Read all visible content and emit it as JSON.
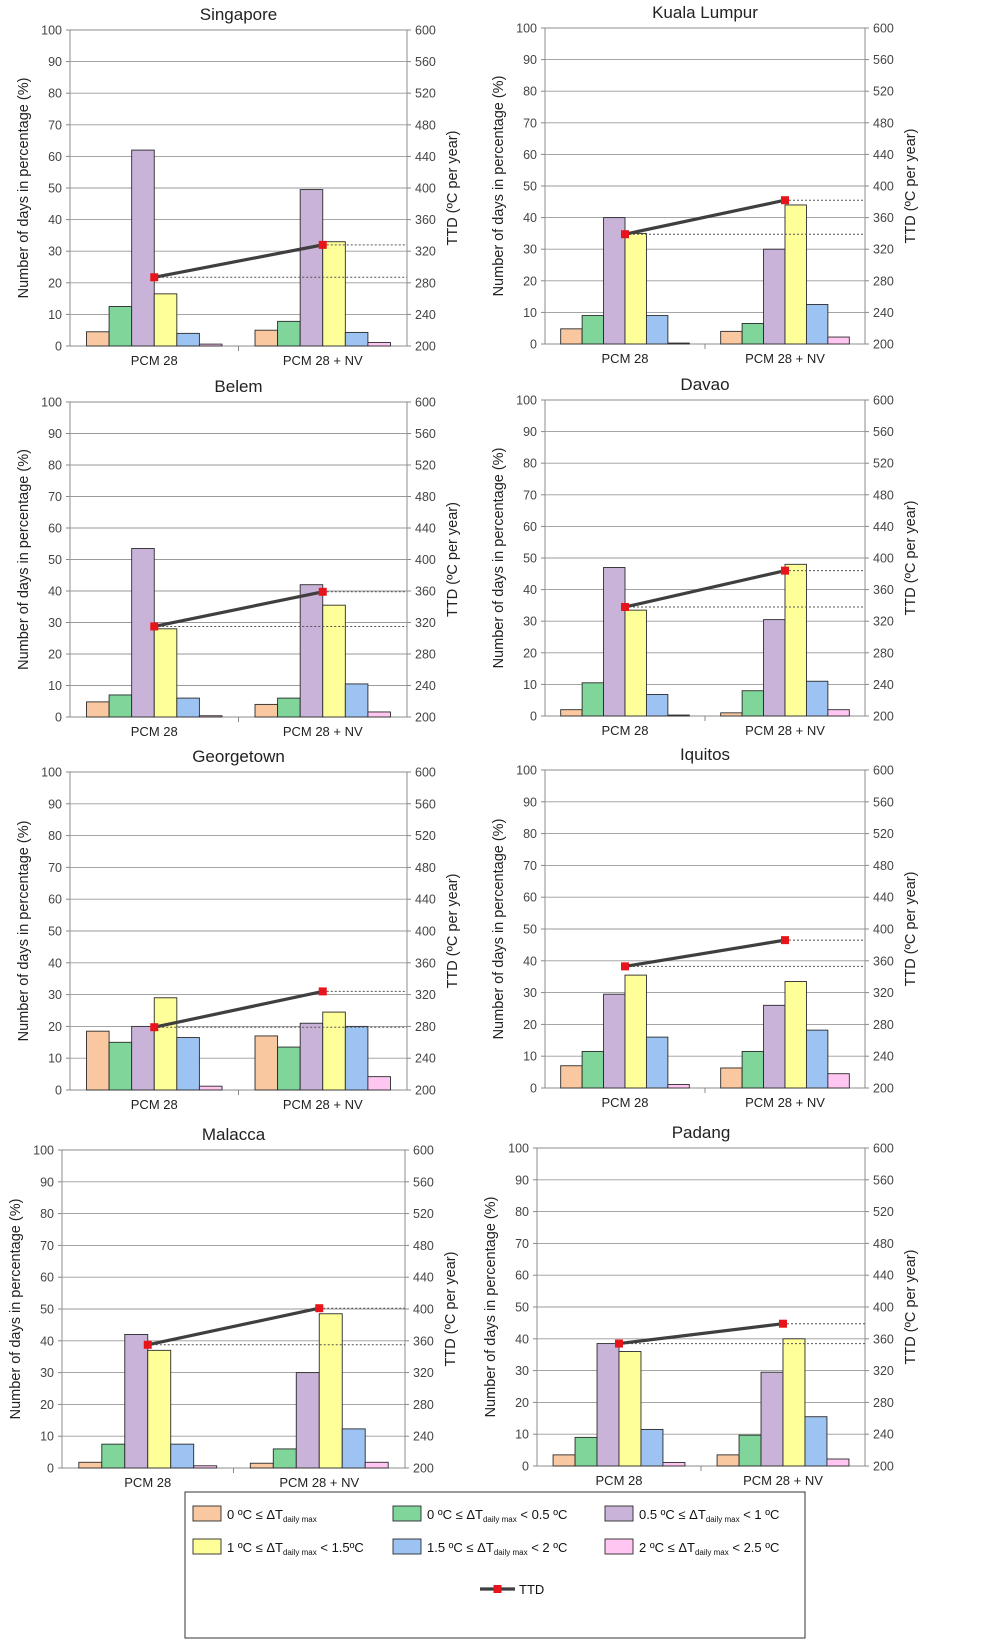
{
  "chart_data": [
    {
      "type": "bar",
      "title": "Singapore",
      "categories": [
        "PCM 28",
        "PCM 28 + NV"
      ],
      "ylabel": "Number of days in percentage (%)",
      "y2label": "TTD (ºC per year)",
      "ylim": [
        0,
        100
      ],
      "y2lim": [
        200,
        600
      ],
      "yticks": [
        "0",
        "10",
        "20",
        "30",
        "40",
        "50",
        "60",
        "70",
        "80",
        "90",
        "100"
      ],
      "y2ticks": [
        "200",
        "240",
        "280",
        "320",
        "360",
        "400",
        "440",
        "480",
        "520",
        "560",
        "600"
      ],
      "series": [
        {
          "name": "0 ºC ≤ ΔT daily max",
          "values": [
            4.5,
            5
          ]
        },
        {
          "name": "0 ºC ≤ ΔT daily max < 0.5 ºC",
          "values": [
            12.5,
            7.8
          ]
        },
        {
          "name": "0.5 ºC ≤ ΔT daily max < 1 ºC",
          "values": [
            62,
            49.5
          ]
        },
        {
          "name": "1 ºC ≤ ΔT daily max < 1.5ºC",
          "values": [
            16.5,
            33
          ]
        },
        {
          "name": "1.5 ºC ≤ ΔT daily max < 2 ºC",
          "values": [
            4,
            4.3
          ]
        },
        {
          "name": "2 ºC ≤ ΔT daily max < 2.5 ºC",
          "values": [
            0.6,
            1.1
          ]
        }
      ],
      "ttd": [
        287,
        328
      ]
    },
    {
      "type": "bar",
      "title": "Kuala Lumpur",
      "categories": [
        "PCM 28",
        "PCM 28 + NV"
      ],
      "ylabel": "Number of days in percentage (%)",
      "y2label": "TTD (ºC per year)",
      "ylim": [
        0,
        100
      ],
      "y2lim": [
        200,
        600
      ],
      "yticks": [
        "0",
        "10",
        "20",
        "30",
        "40",
        "50",
        "60",
        "70",
        "80",
        "90",
        "100"
      ],
      "y2ticks": [
        "200",
        "240",
        "280",
        "320",
        "360",
        "400",
        "440",
        "480",
        "520",
        "560",
        "600"
      ],
      "series": [
        {
          "name": "0 ºC ≤ ΔT daily max",
          "values": [
            4.8,
            4
          ]
        },
        {
          "name": "0 ºC ≤ ΔT daily max < 0.5 ºC",
          "values": [
            9,
            6.5
          ]
        },
        {
          "name": "0.5 ºC ≤ ΔT daily max < 1 ºC",
          "values": [
            40,
            30
          ]
        },
        {
          "name": "1 ºC ≤ ΔT daily max < 1.5ºC",
          "values": [
            35,
            44
          ]
        },
        {
          "name": "1.5 ºC ≤ ΔT daily max < 2 ºC",
          "values": [
            9,
            12.5
          ]
        },
        {
          "name": "2 ºC ≤ ΔT daily max < 2.5 ºC",
          "values": [
            0.3,
            2.2
          ]
        }
      ],
      "ttd": [
        339,
        382
      ]
    },
    {
      "type": "bar",
      "title": "Belem",
      "categories": [
        "PCM 28",
        "PCM 28 + NV"
      ],
      "ylabel": "Number of days in percentage (%)",
      "y2label": "TTD (ºC per year)",
      "ylim": [
        0,
        100
      ],
      "y2lim": [
        200,
        600
      ],
      "yticks": [
        "0",
        "10",
        "20",
        "30",
        "40",
        "50",
        "60",
        "70",
        "80",
        "90",
        "100"
      ],
      "y2ticks": [
        "200",
        "240",
        "280",
        "320",
        "360",
        "400",
        "440",
        "480",
        "520",
        "560",
        "600"
      ],
      "series": [
        {
          "name": "0 ºC ≤ ΔT daily max",
          "values": [
            4.8,
            4
          ]
        },
        {
          "name": "0 ºC ≤ ΔT daily max < 0.5 ºC",
          "values": [
            7,
            6
          ]
        },
        {
          "name": "0.5 ºC ≤ ΔT daily max < 1 ºC",
          "values": [
            53.5,
            42
          ]
        },
        {
          "name": "1 ºC ≤ ΔT daily max < 1.5ºC",
          "values": [
            28,
            35.5
          ]
        },
        {
          "name": "1.5 ºC ≤ ΔT daily max < 2 ºC",
          "values": [
            6,
            10.5
          ]
        },
        {
          "name": "2 ºC ≤ ΔT daily max < 2.5 ºC",
          "values": [
            0.4,
            1.6
          ]
        }
      ],
      "ttd": [
        315,
        359
      ]
    },
    {
      "type": "bar",
      "title": "Davao",
      "categories": [
        "PCM 28",
        "PCM 28 + NV"
      ],
      "ylabel": "Number of days in percentage (%)",
      "y2label": "TTD (ºC per year)",
      "ylim": [
        0,
        100
      ],
      "y2lim": [
        200,
        600
      ],
      "yticks": [
        "0",
        "10",
        "20",
        "30",
        "40",
        "50",
        "60",
        "70",
        "80",
        "90",
        "100"
      ],
      "y2ticks": [
        "200",
        "240",
        "280",
        "320",
        "360",
        "400",
        "440",
        "480",
        "520",
        "560",
        "600"
      ],
      "series": [
        {
          "name": "0 ºC ≤ ΔT daily max",
          "values": [
            2,
            1
          ]
        },
        {
          "name": "0 ºC ≤ ΔT daily max < 0.5 ºC",
          "values": [
            10.5,
            8
          ]
        },
        {
          "name": "0.5 ºC ≤ ΔT daily max < 1 ºC",
          "values": [
            47,
            30.5
          ]
        },
        {
          "name": "1 ºC ≤ ΔT daily max < 1.5ºC",
          "values": [
            33.5,
            48
          ]
        },
        {
          "name": "1.5 ºC ≤ ΔT daily max < 2 ºC",
          "values": [
            6.8,
            11
          ]
        },
        {
          "name": "2 ºC ≤ ΔT daily max < 2.5 ºC",
          "values": [
            0.3,
            2
          ]
        }
      ],
      "ttd": [
        338,
        384
      ]
    },
    {
      "type": "bar",
      "title": "Georgetown",
      "categories": [
        "PCM 28",
        "PCM 28 + NV"
      ],
      "ylabel": "Number of days in percentage (%)",
      "y2label": "TTD (ºC per year)",
      "ylim": [
        0,
        100
      ],
      "y2lim": [
        200,
        600
      ],
      "yticks": [
        "0",
        "10",
        "20",
        "30",
        "40",
        "50",
        "60",
        "70",
        "80",
        "90",
        "100"
      ],
      "y2ticks": [
        "200",
        "240",
        "280",
        "320",
        "360",
        "400",
        "440",
        "480",
        "520",
        "560",
        "600"
      ],
      "series": [
        {
          "name": "0 ºC ≤ ΔT daily max",
          "values": [
            18.5,
            17
          ]
        },
        {
          "name": "0 ºC ≤ ΔT daily max < 0.5 ºC",
          "values": [
            15,
            13.5
          ]
        },
        {
          "name": "0.5 ºC ≤ ΔT daily max < 1 ºC",
          "values": [
            20,
            21
          ]
        },
        {
          "name": "1 ºC ≤ ΔT daily max < 1.5ºC",
          "values": [
            29,
            24.5
          ]
        },
        {
          "name": "1.5 ºC ≤ ΔT daily max < 2 ºC",
          "values": [
            16.5,
            20
          ]
        },
        {
          "name": "2 ºC ≤ ΔT daily max < 2.5 ºC",
          "values": [
            1.2,
            4.2
          ]
        }
      ],
      "ttd": [
        279,
        324
      ]
    },
    {
      "type": "bar",
      "title": "Iquitos",
      "categories": [
        "PCM 28",
        "PCM 28 + NV"
      ],
      "ylabel": "Number of days in percentage (%)",
      "y2label": "TTD (ºC per year)",
      "ylim": [
        0,
        100
      ],
      "y2lim": [
        200,
        600
      ],
      "yticks": [
        "0",
        "10",
        "20",
        "30",
        "40",
        "50",
        "60",
        "70",
        "80",
        "90",
        "100"
      ],
      "y2ticks": [
        "200",
        "240",
        "280",
        "320",
        "360",
        "400",
        "440",
        "480",
        "520",
        "560",
        "600"
      ],
      "series": [
        {
          "name": "0 ºC ≤ ΔT daily max",
          "values": [
            7,
            6.3
          ]
        },
        {
          "name": "0 ºC ≤ ΔT daily max < 0.5 ºC",
          "values": [
            11.5,
            11.5
          ]
        },
        {
          "name": "0.5 ºC ≤ ΔT daily max < 1 ºC",
          "values": [
            29.5,
            26
          ]
        },
        {
          "name": "1 ºC ≤ ΔT daily max < 1.5ºC",
          "values": [
            35.5,
            33.5
          ]
        },
        {
          "name": "1.5 ºC ≤ ΔT daily max < 2 ºC",
          "values": [
            16,
            18.2
          ]
        },
        {
          "name": "2 ºC ≤ ΔT daily max < 2.5 ºC",
          "values": [
            1.1,
            4.5
          ]
        }
      ],
      "ttd": [
        353,
        386
      ]
    },
    {
      "type": "bar",
      "title": "Malacca",
      "categories": [
        "PCM 28",
        "PCM 28 + NV"
      ],
      "ylabel": "Number of days in percentage (%)",
      "y2label": "TTD (ºC per year)",
      "ylim": [
        0,
        100
      ],
      "y2lim": [
        200,
        600
      ],
      "yticks": [
        "0",
        "10",
        "20",
        "30",
        "40",
        "50",
        "60",
        "70",
        "80",
        "90",
        "100"
      ],
      "y2ticks": [
        "200",
        "240",
        "280",
        "320",
        "360",
        "400",
        "440",
        "480",
        "520",
        "560",
        "600"
      ],
      "series": [
        {
          "name": "0 ºC ≤ ΔT daily max",
          "values": [
            1.8,
            1.5
          ]
        },
        {
          "name": "0 ºC ≤ ΔT daily max < 0.5 ºC",
          "values": [
            7.5,
            6
          ]
        },
        {
          "name": "0.5 ºC ≤ ΔT daily max < 1 ºC",
          "values": [
            42,
            30
          ]
        },
        {
          "name": "1 ºC ≤ ΔT daily max < 1.5ºC",
          "values": [
            37,
            48.5
          ]
        },
        {
          "name": "1.5 ºC ≤ ΔT daily max < 2 ºC",
          "values": [
            7.5,
            12.3
          ]
        },
        {
          "name": "2 ºC ≤ ΔT daily max < 2.5 ºC",
          "values": [
            0.7,
            1.8
          ]
        }
      ],
      "ttd": [
        355,
        401
      ]
    },
    {
      "type": "bar",
      "title": "Padang",
      "categories": [
        "PCM 28",
        "PCM 28 + NV"
      ],
      "ylabel": "Number of days in percentage (%)",
      "y2label": "TTD (ºC per year)",
      "ylim": [
        0,
        100
      ],
      "y2lim": [
        200,
        600
      ],
      "yticks": [
        "0",
        "10",
        "20",
        "30",
        "40",
        "50",
        "60",
        "70",
        "80",
        "90",
        "100"
      ],
      "y2ticks": [
        "200",
        "240",
        "280",
        "320",
        "360",
        "400",
        "440",
        "480",
        "520",
        "560",
        "600"
      ],
      "series": [
        {
          "name": "0 ºC ≤ ΔT daily max",
          "values": [
            3.5,
            3.5
          ]
        },
        {
          "name": "0 ºC ≤ ΔT daily max < 0.5 ºC",
          "values": [
            9,
            9.7
          ]
        },
        {
          "name": "0.5 ºC ≤ ΔT daily max < 1 ºC",
          "values": [
            38.5,
            29.5
          ]
        },
        {
          "name": "1 ºC ≤ ΔT daily max < 1.5ºC",
          "values": [
            36,
            40
          ]
        },
        {
          "name": "1.5 ºC ≤ ΔT daily max < 2 ºC",
          "values": [
            11.5,
            15.5
          ]
        },
        {
          "name": "2 ºC ≤ ΔT daily max < 2.5 ºC",
          "values": [
            1.1,
            2.2
          ]
        }
      ],
      "ttd": [
        354,
        379
      ]
    }
  ],
  "series_colors": [
    "#FAC8A0",
    "#7FD59A",
    "#C9B3D9",
    "#FFFF99",
    "#9DC3F2",
    "#FFC6F2"
  ],
  "ttd_colors": {
    "line": "#3F3F3F",
    "marker": "#E8141B"
  },
  "legend": {
    "items": [
      {
        "pre": "0 ºC ≤ ΔT",
        "sub": "daily max",
        "post": ""
      },
      {
        "pre": "0 ºC ≤  ΔT",
        "sub": "daily max",
        "post": " < 0.5  ºC"
      },
      {
        "pre": "0.5 ºC ≤ ΔT",
        "sub": "daily max",
        "post": " < 1 ºC"
      },
      {
        "pre": "1 ºC ≤ ΔT",
        "sub": "daily max",
        "post": " < 1.5ºC"
      },
      {
        "pre": "1.5 ºC ≤ ΔT",
        "sub": "daily max",
        "post": " < 2 ºC"
      },
      {
        "pre": "2 ºC ≤  ΔT",
        "sub": "daily max",
        "post": " < 2.5 ºC"
      }
    ],
    "ttd_label": "TTD"
  }
}
